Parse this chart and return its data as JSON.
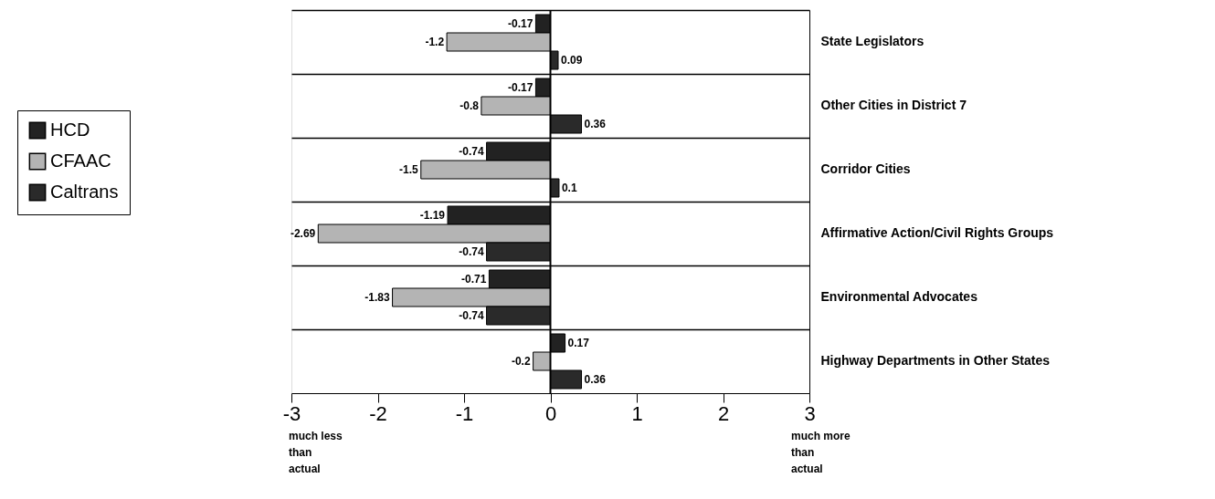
{
  "chart_data": {
    "type": "bar",
    "orientation": "horizontal",
    "categories": [
      "State Legislators",
      "Other Cities in District 7",
      "Corridor Cities",
      "Affirmative Action/Civil Rights Groups",
      "Environmental Advocates",
      "Highway Departments in Other States"
    ],
    "series": [
      {
        "name": "HCD",
        "color": "#222222",
        "values": [
          -0.17,
          -0.17,
          -0.74,
          -1.19,
          -0.71,
          0.17
        ]
      },
      {
        "name": "CFAAC",
        "color": "#b4b4b4",
        "values": [
          -1.2,
          -0.8,
          -1.5,
          -2.69,
          -1.83,
          -0.2
        ]
      },
      {
        "name": "Caltrans",
        "color": "#2a2a2a",
        "values": [
          0.09,
          0.36,
          0.1,
          -0.74,
          -0.74,
          0.36
        ]
      }
    ],
    "xlim": [
      -3,
      3
    ],
    "xticks": [
      -3,
      -2,
      -1,
      0,
      1,
      2,
      3
    ],
    "ref_lines": [
      {
        "axis": "x",
        "value": 0
      }
    ],
    "annotations": [
      "much less than actual",
      "much more than actual"
    ],
    "data_labels": true,
    "grid": "y",
    "legend": "left"
  }
}
